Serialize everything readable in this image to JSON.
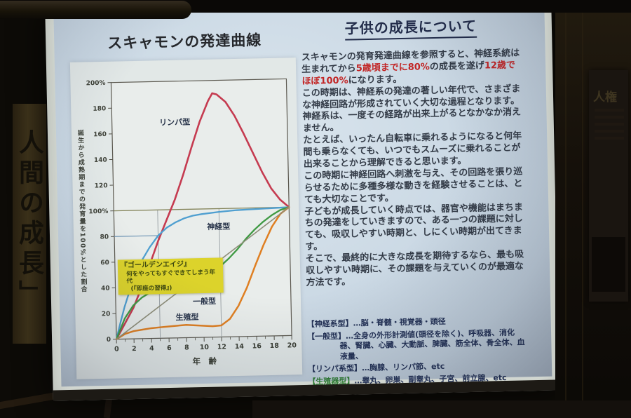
{
  "room": {
    "left_scroll": {
      "text": "人間の成長」"
    },
    "right_poster": {
      "title": "人権"
    }
  },
  "slide": {
    "chart_section": {
      "title": "スキャモンの発達曲線"
    },
    "text_section": {
      "title": "子供の成長について",
      "highlight_color": "#c22525",
      "paragraphs": [
        {
          "segments": [
            {
              "t": "スキャモンの発育発達曲線を参照すると、神経系統は生まれてから"
            },
            {
              "t": "5歳頃までに80%",
              "red": true
            },
            {
              "t": "の成長を遂げ"
            },
            {
              "t": "12歳でほぼ100%",
              "red": true
            },
            {
              "t": "になります。"
            }
          ]
        },
        {
          "segments": [
            {
              "t": "この時期は、神経系の発達の著しい年代で、さまざまな神経回路が形成されていく大切な過程となります。"
            }
          ]
        },
        {
          "segments": [
            {
              "t": "神経系は、一度その経路が出来上がるとなかなか消えません。"
            }
          ]
        },
        {
          "segments": [
            {
              "t": "たとえば、いったん自転車に乗れるようになると何年間も乗らなくても、いつでもスムーズに乗れることが出来ることから理解できると思います。"
            }
          ]
        },
        {
          "segments": [
            {
              "t": "この時期に神経回路へ刺激を与え、その回路を張り巡らせるために多種多様な動きを経験させることは、とても大切なことです。"
            }
          ]
        },
        {
          "segments": [
            {
              "t": "子どもが成長していく時点では、器官や機能はまちまちの発達をしていきますので、ある一つの課題に対しても、吸収しやすい時期と、しにくい時期が出てきます。"
            }
          ]
        },
        {
          "segments": [
            {
              "t": "そこで、最終的に大きな成長を期待するなら、最も吸収しやすい時期に、その課題を与えていくのが最適な方法です。"
            }
          ]
        }
      ],
      "legend": [
        {
          "bracket": "【神経系型】",
          "rest": "…脳・脊髄・視覚器・頭径",
          "green": false
        },
        {
          "bracket": "【一般型】",
          "rest": "…全身の外形計測値(頭径を除く)、呼吸器、消化器、腎臓、心臓、大動脈、脾臓、筋全体、骨全体、血液量、",
          "green": false
        },
        {
          "bracket": "【リンパ系型】",
          "rest": "…胸腺、リンパ節、etc",
          "green": false
        },
        {
          "bracket": "【生殖器型】",
          "rest": "…睾丸、卵巣、副睾丸、子宮、前立腺、etc",
          "green": true
        }
      ]
    }
  },
  "chart_data": {
    "type": "line",
    "title": "スキャモンの発達曲線",
    "x_label": "年　齢",
    "y_axis_title": "誕生から成熟期までの発育量を100%とした割合",
    "x_range": [
      0,
      20
    ],
    "y_range": [
      0,
      200
    ],
    "x_ticks": [
      0,
      2,
      4,
      6,
      8,
      10,
      12,
      14,
      16,
      18,
      20
    ],
    "y_ticks": [
      {
        "v": 200,
        "label": "200%"
      },
      {
        "v": 180,
        "label": "180"
      },
      {
        "v": 160,
        "label": "160"
      },
      {
        "v": 140,
        "label": "140"
      },
      {
        "v": 120,
        "label": "120"
      },
      {
        "v": 100,
        "label": "100%"
      },
      {
        "v": 80,
        "label": "80"
      },
      {
        "v": 60,
        "label": "60"
      },
      {
        "v": 40,
        "label": "40"
      },
      {
        "v": 20,
        "label": "20"
      },
      {
        "v": 0,
        "label": "0"
      }
    ],
    "grid": {
      "vertical_lines": [
        5,
        12
      ],
      "h100": 100,
      "h80": {
        "y": 80,
        "x_end": 5
      }
    },
    "series": [
      {
        "key": "lymphoid",
        "name": "リンパ型",
        "color": "#c53b50",
        "width": 2.6,
        "label_pos": [
          5.4,
          166
        ],
        "points": [
          [
            0,
            0
          ],
          [
            1,
            12
          ],
          [
            2,
            24
          ],
          [
            3,
            40
          ],
          [
            4,
            58
          ],
          [
            5,
            76
          ],
          [
            6,
            92
          ],
          [
            7,
            108
          ],
          [
            8,
            127
          ],
          [
            9,
            148
          ],
          [
            10,
            168
          ],
          [
            11,
            184
          ],
          [
            11.5,
            190
          ],
          [
            12,
            189
          ],
          [
            13,
            183
          ],
          [
            14,
            172
          ],
          [
            15,
            158
          ],
          [
            16,
            143
          ],
          [
            17,
            128
          ],
          [
            18,
            115
          ],
          [
            19,
            106
          ],
          [
            20,
            100
          ]
        ]
      },
      {
        "key": "neural",
        "name": "神経型",
        "color": "#4f9fd0",
        "width": 2.3,
        "label_pos": [
          10.6,
          84
        ],
        "points": [
          [
            0,
            0
          ],
          [
            0.5,
            13
          ],
          [
            1,
            25
          ],
          [
            2,
            45
          ],
          [
            3,
            60
          ],
          [
            4,
            71
          ],
          [
            5,
            80
          ],
          [
            6,
            86
          ],
          [
            7,
            90
          ],
          [
            8,
            93
          ],
          [
            9,
            95
          ],
          [
            10,
            96
          ],
          [
            12,
            97.5
          ],
          [
            14,
            98.5
          ],
          [
            16,
            99
          ],
          [
            18,
            99.5
          ],
          [
            20,
            100
          ]
        ]
      },
      {
        "key": "general",
        "name": "一般型",
        "color": "#3f9a43",
        "width": 2.3,
        "label_pos": [
          8.8,
          26
        ],
        "points": [
          [
            0,
            0
          ],
          [
            1,
            16
          ],
          [
            2,
            26
          ],
          [
            3,
            32
          ],
          [
            4,
            36
          ],
          [
            5,
            39
          ],
          [
            6,
            41
          ],
          [
            7,
            42.5
          ],
          [
            8,
            44
          ],
          [
            9,
            46
          ],
          [
            10,
            48
          ],
          [
            11,
            51
          ],
          [
            12,
            55
          ],
          [
            13,
            61
          ],
          [
            14,
            68
          ],
          [
            15,
            76
          ],
          [
            16,
            83
          ],
          [
            17,
            89
          ],
          [
            18,
            94
          ],
          [
            19,
            98
          ],
          [
            20,
            100
          ]
        ]
      },
      {
        "key": "genital",
        "name": "生殖型",
        "color": "#df7f22",
        "width": 2.5,
        "label_pos": [
          6.8,
          14
        ],
        "points": [
          [
            0,
            0
          ],
          [
            1,
            4
          ],
          [
            2,
            6
          ],
          [
            3,
            7
          ],
          [
            4,
            8
          ],
          [
            5,
            8.5
          ],
          [
            6,
            9
          ],
          [
            7,
            9.5
          ],
          [
            8,
            10
          ],
          [
            9,
            9.5
          ],
          [
            10,
            9
          ],
          [
            11,
            8.5
          ],
          [
            12,
            9
          ],
          [
            13,
            14
          ],
          [
            14,
            24
          ],
          [
            15,
            38
          ],
          [
            16,
            55
          ],
          [
            17,
            71
          ],
          [
            18,
            85
          ],
          [
            19,
            95
          ],
          [
            20,
            100
          ]
        ]
      },
      {
        "key": "linear",
        "name": "",
        "color": "#8d8d78",
        "width": 1.6,
        "label_pos": null,
        "points": [
          [
            0,
            0
          ],
          [
            20,
            100
          ]
        ]
      }
    ],
    "annotation_box": {
      "bg": "#dcd32b",
      "lines": [
        "『ゴールデンエイジ』",
        "何をやってもすぐできてしまう年代",
        "(『即座の習得』)"
      ]
    }
  }
}
